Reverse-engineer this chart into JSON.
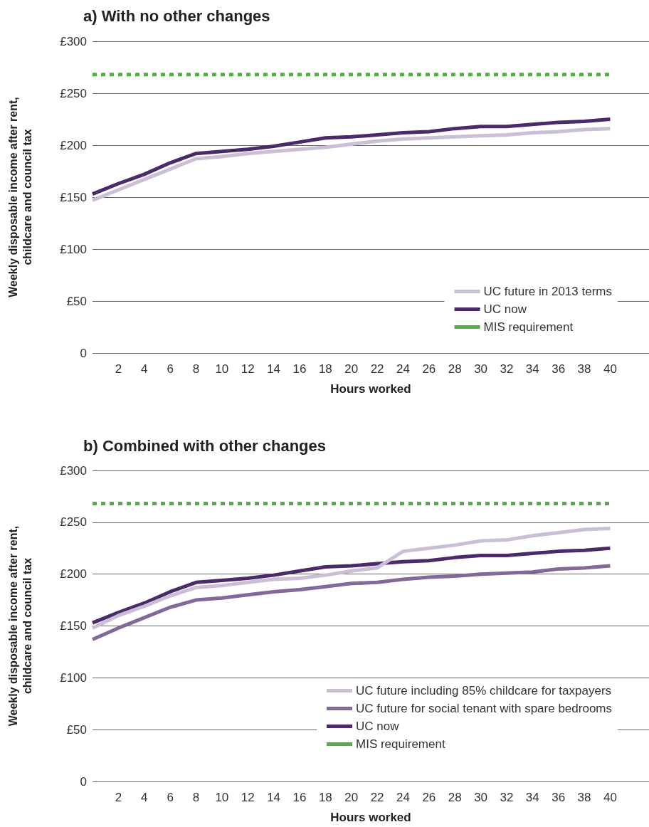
{
  "chart_data": [
    {
      "type": "line",
      "title": "a) With no other changes",
      "xlabel": "Hours worked",
      "ylabel": "Weekly disposable income after rent,\nchildcare and council tax",
      "x": [
        0,
        2,
        4,
        6,
        8,
        10,
        12,
        14,
        16,
        18,
        20,
        22,
        24,
        26,
        28,
        30,
        32,
        34,
        36,
        38,
        40
      ],
      "xlim": [
        0,
        43
      ],
      "xticks": [
        2,
        4,
        6,
        8,
        10,
        12,
        14,
        16,
        18,
        20,
        22,
        24,
        26,
        28,
        30,
        32,
        34,
        36,
        38,
        40
      ],
      "ylim": [
        0,
        300
      ],
      "yticks": [
        0,
        {
          "value": 50,
          "label": "£50"
        },
        {
          "value": 100,
          "label": "£100"
        },
        {
          "value": 150,
          "label": "£150"
        },
        {
          "value": 200,
          "label": "£200"
        },
        {
          "value": 250,
          "label": "£250"
        },
        {
          "value": 300,
          "label": "£300"
        }
      ],
      "grid": "y",
      "legend": "bottom right",
      "marker": "none",
      "series": [
        {
          "name": "UC future in 2013 terms",
          "color": "#cbbfd6",
          "values": [
            147,
            157,
            167,
            177,
            187,
            189,
            192,
            194,
            196,
            198,
            201,
            204,
            206,
            207,
            208,
            209,
            210,
            212,
            213,
            215,
            216
          ]
        },
        {
          "name": "UC now",
          "color": "#4a2a6b",
          "values": [
            153,
            163,
            172,
            183,
            192,
            194,
            196,
            199,
            203,
            207,
            208,
            210,
            212,
            213,
            216,
            218,
            218,
            220,
            222,
            223,
            225
          ]
        },
        {
          "name": "MIS requirement",
          "color": "#52ae44",
          "line_style": "dashed",
          "values": [
            268,
            268,
            268,
            268,
            268,
            268,
            268,
            268,
            268,
            268,
            268,
            268,
            268,
            268,
            268,
            268,
            268,
            268,
            268,
            268,
            268
          ]
        }
      ]
    },
    {
      "type": "line",
      "title": "b) Combined with other changes",
      "xlabel": "Hours worked",
      "ylabel": "Weekly disposable income after rent,\nchildcare and council tax",
      "x": [
        0,
        2,
        4,
        6,
        8,
        10,
        12,
        14,
        16,
        18,
        20,
        22,
        24,
        26,
        28,
        30,
        32,
        34,
        36,
        38,
        40
      ],
      "xlim": [
        0,
        43
      ],
      "xticks": [
        2,
        4,
        6,
        8,
        10,
        12,
        14,
        16,
        18,
        20,
        22,
        24,
        26,
        28,
        30,
        32,
        34,
        36,
        38,
        40
      ],
      "ylim": [
        0,
        300
      ],
      "yticks": [
        0,
        {
          "value": 50,
          "label": "£50"
        },
        {
          "value": 100,
          "label": "£100"
        },
        {
          "value": 150,
          "label": "£150"
        },
        {
          "value": 200,
          "label": "£200"
        },
        {
          "value": 250,
          "label": "£250"
        },
        {
          "value": 300,
          "label": "£300"
        }
      ],
      "grid": "y",
      "legend": "bottom right",
      "marker": "none",
      "series": [
        {
          "name": "UC future including 85% childcare for taxpayers",
          "color": "#cbbfd6",
          "values": [
            148,
            160,
            169,
            179,
            187,
            189,
            192,
            195,
            196,
            199,
            203,
            206,
            222,
            225,
            228,
            232,
            233,
            237,
            240,
            243,
            244
          ]
        },
        {
          "name": "UC future for social tenant with spare bedrooms",
          "color": "#82699a",
          "values": [
            137,
            148,
            158,
            168,
            175,
            177,
            180,
            183,
            185,
            188,
            191,
            192,
            195,
            197,
            198,
            200,
            201,
            202,
            205,
            206,
            208
          ]
        },
        {
          "name": "UC now",
          "color": "#4a2a6b",
          "values": [
            153,
            163,
            172,
            183,
            192,
            194,
            196,
            199,
            203,
            207,
            208,
            210,
            212,
            213,
            216,
            218,
            218,
            220,
            222,
            223,
            225
          ]
        },
        {
          "name": "MIS requirement",
          "color": "#52ae44",
          "line_style": "dashed",
          "values": [
            268,
            268,
            268,
            268,
            268,
            268,
            268,
            268,
            268,
            268,
            268,
            268,
            268,
            268,
            268,
            268,
            268,
            268,
            268,
            268,
            268
          ]
        }
      ]
    }
  ]
}
